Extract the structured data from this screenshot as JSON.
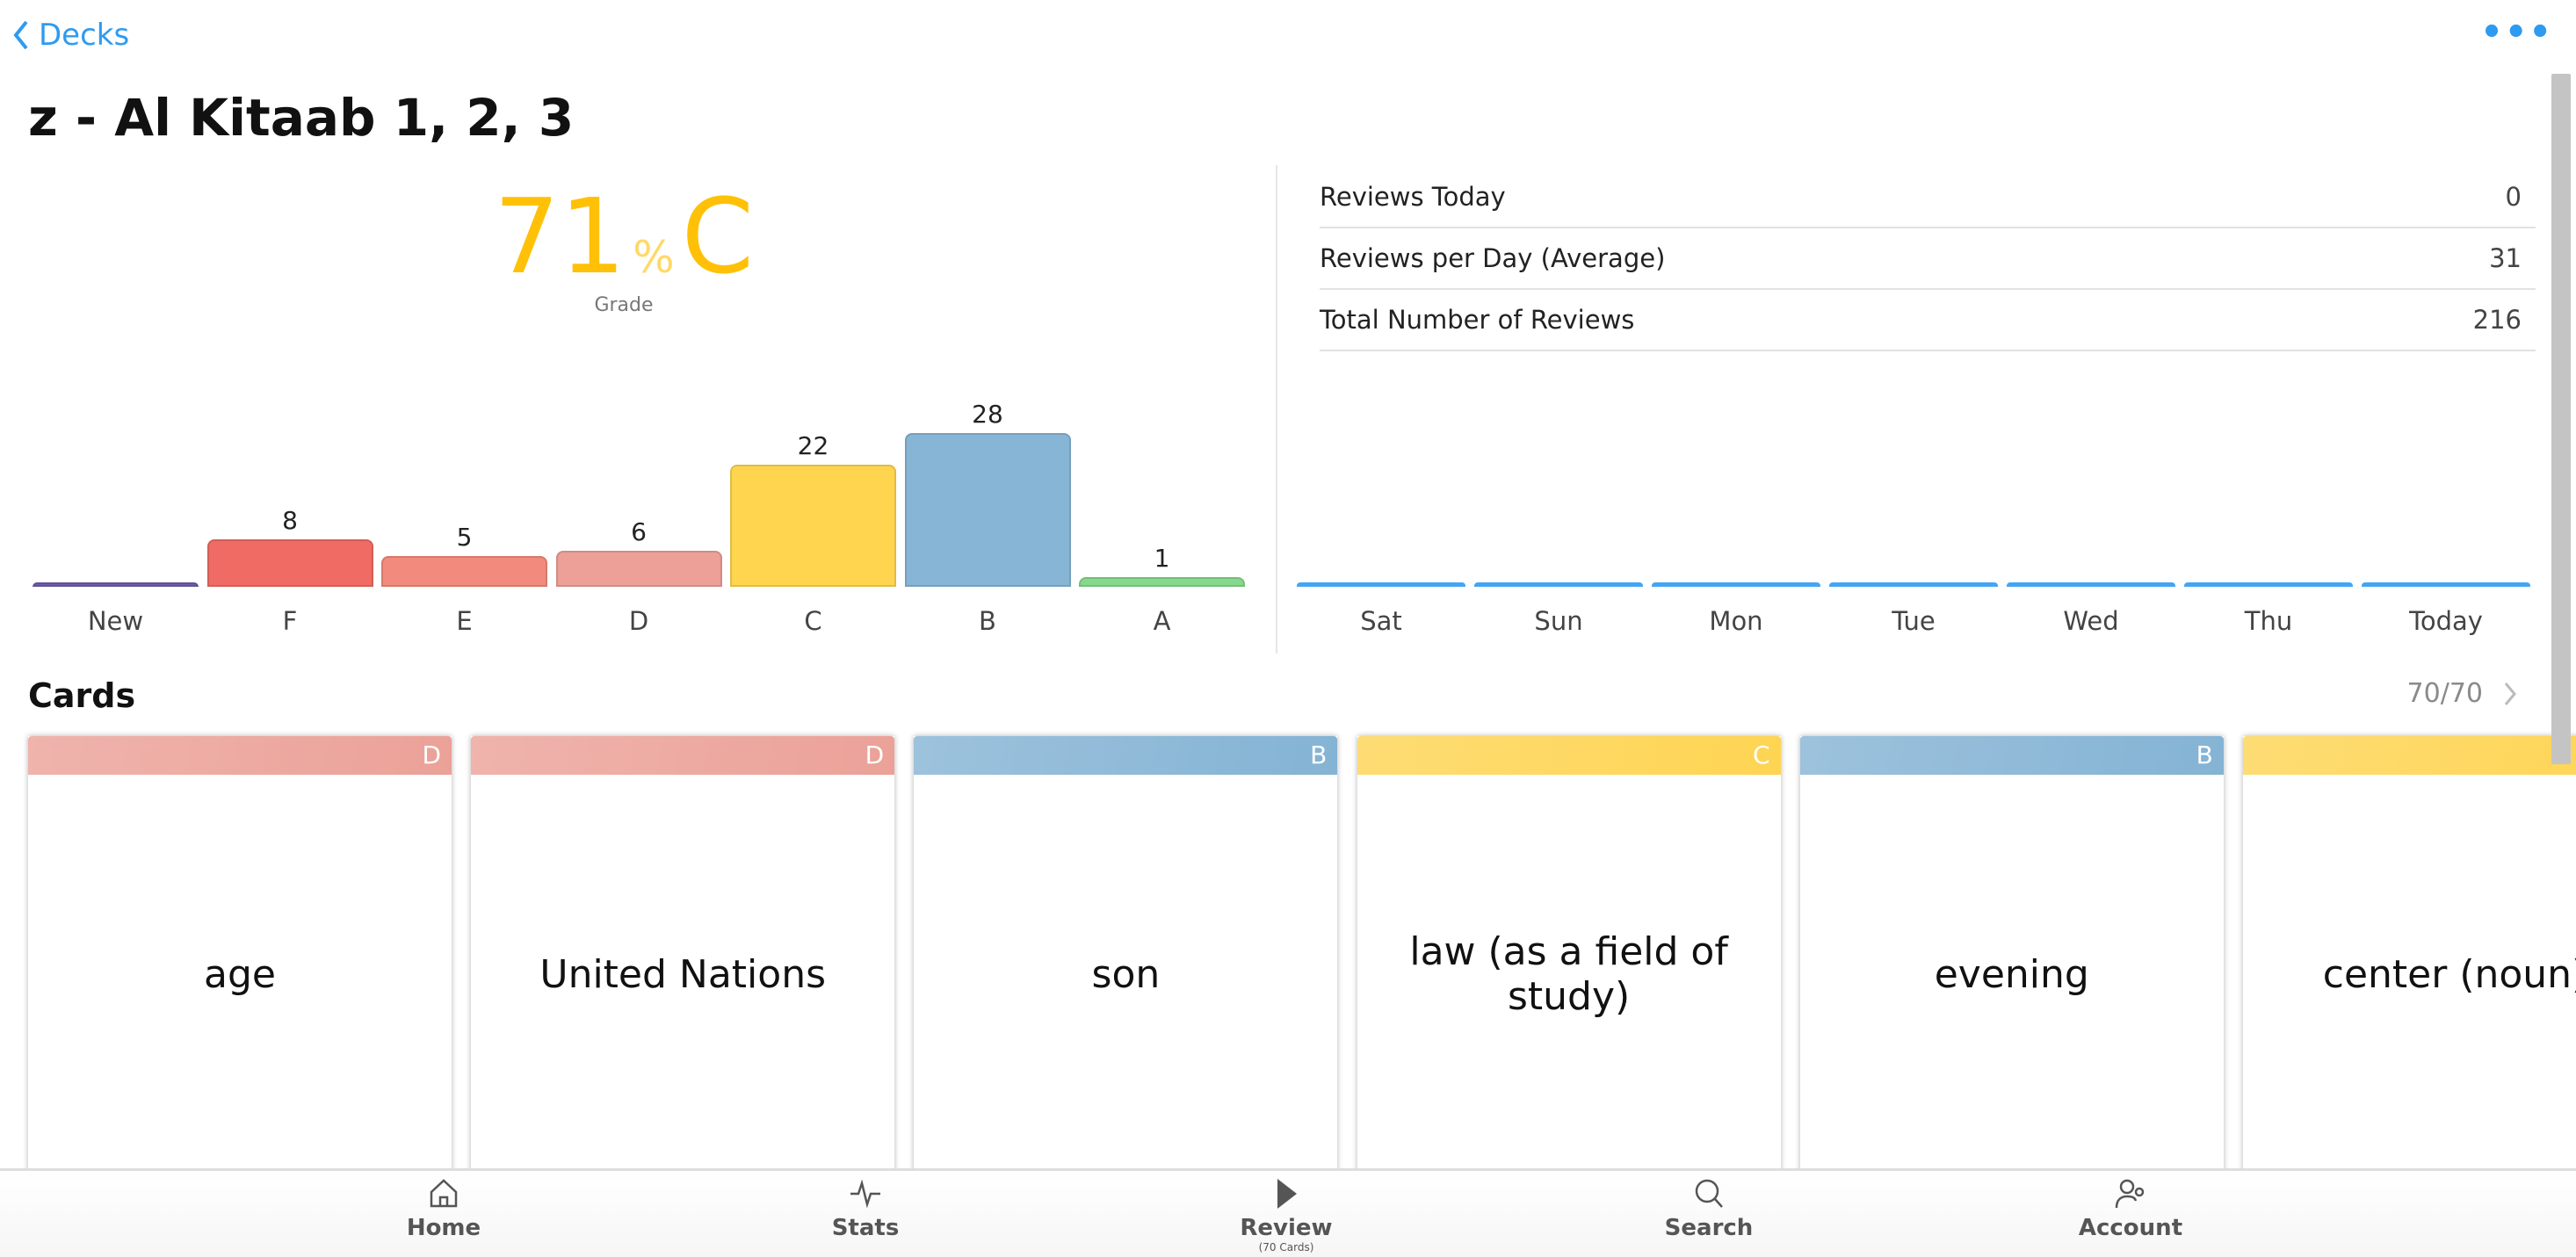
{
  "header": {
    "back_label": "Decks",
    "more_label": "•••"
  },
  "deck_title": "z - Al Kitaab 1, 2, 3",
  "grade": {
    "percent": "71",
    "percent_sign": "%",
    "letter": "C",
    "label": "Grade"
  },
  "grade_chart": {
    "type": "bar",
    "categories": [
      "New",
      "F",
      "E",
      "D",
      "C",
      "B",
      "A"
    ],
    "values": [
      0,
      8,
      5,
      6,
      22,
      28,
      1
    ],
    "value_labels": [
      "",
      "8",
      "5",
      "6",
      "22",
      "28",
      "1"
    ],
    "colors": [
      "#6f5fa8",
      "#f06b63",
      "#f28b7d",
      "#eca097",
      "#ffd54f",
      "#87b5d5",
      "#86d98a"
    ]
  },
  "stats": [
    {
      "label": "Reviews Today",
      "value": "0"
    },
    {
      "label": "Reviews per Day (Average)",
      "value": "31"
    },
    {
      "label": "Total Number of Reviews",
      "value": "216"
    }
  ],
  "review_chart": {
    "type": "bar",
    "categories": [
      "Sat",
      "Sun",
      "Mon",
      "Tue",
      "Wed",
      "Thu",
      "Today"
    ],
    "values": [
      0,
      0,
      0,
      0,
      0,
      0,
      0
    ],
    "color": "#42a5f5"
  },
  "cards_section": {
    "title": "Cards",
    "count": "70/70"
  },
  "cards": [
    {
      "grade": "D",
      "text": "age",
      "color": "#eba198"
    },
    {
      "grade": "D",
      "text": "United Nations",
      "color": "#eba198"
    },
    {
      "grade": "B",
      "text": "son",
      "color": "#84b3d4"
    },
    {
      "grade": "C",
      "text": "law (as a field of study)",
      "color": "#fed452"
    },
    {
      "grade": "B",
      "text": "evening",
      "color": "#84b3d4"
    },
    {
      "grade": "",
      "text": "center (noun)",
      "color": "#fed452"
    }
  ],
  "nav": [
    {
      "label": "Home",
      "icon": "home-icon"
    },
    {
      "label": "Stats",
      "icon": "stats-icon"
    },
    {
      "label": "Review",
      "sub": "(70 Cards)",
      "icon": "play-icon"
    },
    {
      "label": "Search",
      "icon": "search-icon"
    },
    {
      "label": "Account",
      "icon": "account-icon"
    }
  ]
}
